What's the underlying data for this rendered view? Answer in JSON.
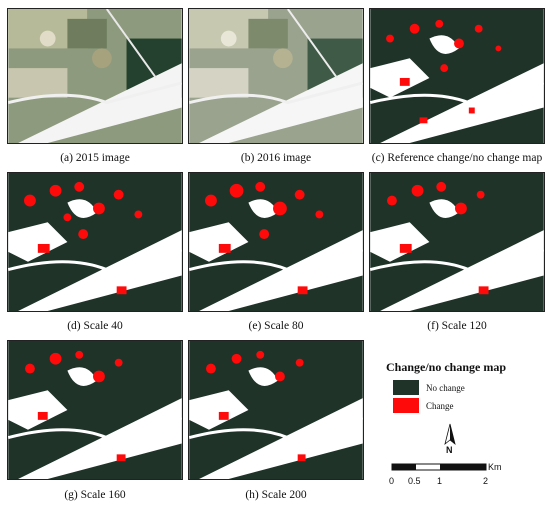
{
  "panels": [
    {
      "caption": "(a) 2015 image",
      "kind": "satellite"
    },
    {
      "caption": "(b) 2016 image",
      "kind": "satellite_light"
    },
    {
      "caption": "(c) Reference change/no change map",
      "kind": "map"
    },
    {
      "caption": "(d) Scale 40",
      "kind": "map"
    },
    {
      "caption": "(e) Scale 80",
      "kind": "map"
    },
    {
      "caption": "(f) Scale 120",
      "kind": "map"
    },
    {
      "caption": "(g) Scale 160",
      "kind": "map"
    },
    {
      "caption": "(h) Scale 200",
      "kind": "map"
    }
  ],
  "legend": {
    "title": "Change/no change map",
    "items": [
      {
        "label": "No change",
        "color": "#1f3328"
      },
      {
        "label": "Change",
        "color": "#ff0a0a"
      }
    ]
  },
  "north_arrow": {
    "label": "N"
  },
  "scale_bar": {
    "unit": "Km",
    "ticks": [
      "0",
      "0.5",
      "1",
      "2"
    ]
  }
}
